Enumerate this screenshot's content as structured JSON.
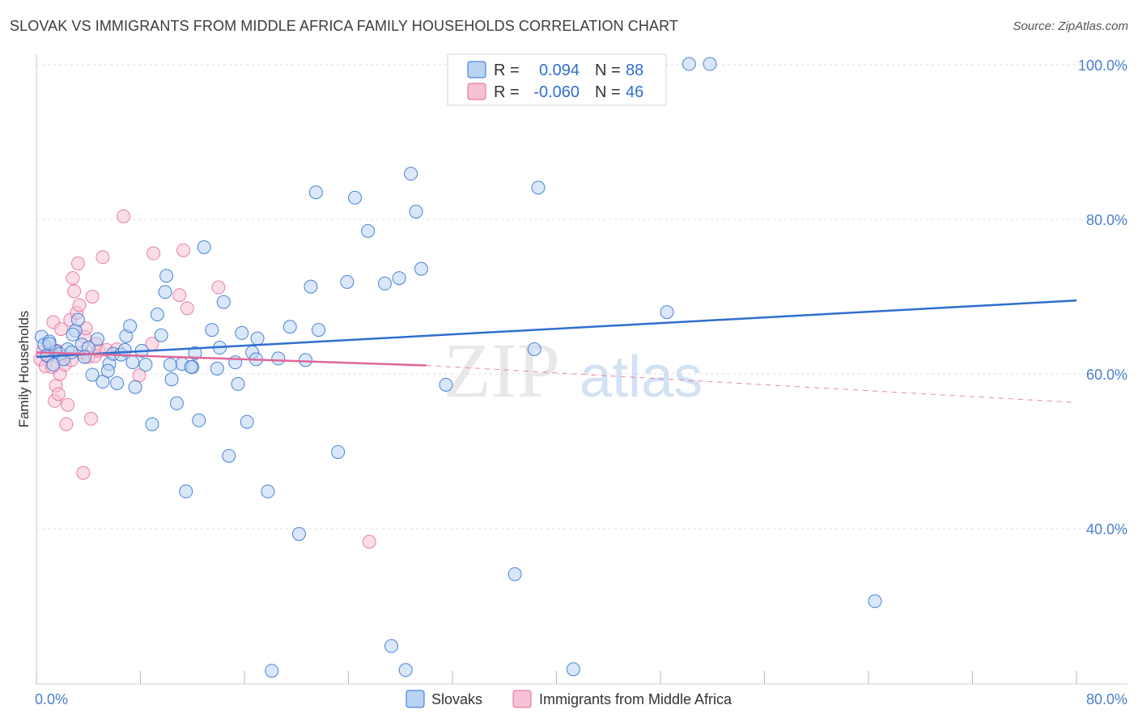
{
  "title": "SLOVAK VS IMMIGRANTS FROM MIDDLE AFRICA FAMILY HOUSEHOLDS CORRELATION CHART",
  "source": "Source: ZipAtlas.com",
  "watermark": {
    "zip": "ZIP",
    "atlas": "atlas"
  },
  "colors": {
    "blue": "#2f6fcf",
    "blue_fill": "#b9d3f3",
    "pink": "#e0679a",
    "pink_fill": "#f6c1d4",
    "tick": "#4a7fcf"
  },
  "legend": {
    "rows": [
      {
        "r_label": "R =",
        "r_value": "0.094",
        "n_label": "N =",
        "n_value": "88"
      },
      {
        "r_label": "R =",
        "r_value": "-0.060",
        "n_label": "N =",
        "n_value": "46"
      }
    ]
  },
  "chart_data": {
    "type": "scatter",
    "title": "SLOVAK VS IMMIGRANTS FROM MIDDLE AFRICA FAMILY HOUSEHOLDS CORRELATION CHART",
    "xlabel": "",
    "ylabel": "Family Households",
    "xlim": [
      0,
      80
    ],
    "ylim": [
      20,
      102
    ],
    "x_tick_labels": [
      {
        "value": 0,
        "label": "0.0%"
      },
      {
        "value": 80,
        "label": "80.0%"
      }
    ],
    "y_tick_labels": [
      {
        "value": 100,
        "label": "100.0%"
      },
      {
        "value": 80,
        "label": "80.0%"
      },
      {
        "value": 60,
        "label": "60.0%"
      },
      {
        "value": 40,
        "label": "40.0%"
      }
    ],
    "series": [
      {
        "name": "Slovaks",
        "color": "#2f6fcf",
        "trend": {
          "x": [
            0,
            80
          ],
          "y": [
            62.2,
            69.5
          ],
          "style": "solid"
        },
        "points": [
          [
            0.4,
            64.8
          ],
          [
            0.6,
            63.8
          ],
          [
            0.8,
            62.4
          ],
          [
            1.0,
            64.2
          ],
          [
            1.3,
            61.2
          ],
          [
            1.5,
            62.9
          ],
          [
            1.8,
            62.6
          ],
          [
            2.1,
            61.9
          ],
          [
            2.4,
            63.2
          ],
          [
            2.7,
            62.8
          ],
          [
            3.0,
            65.6
          ],
          [
            3.2,
            67.0
          ],
          [
            3.5,
            63.8
          ],
          [
            4.0,
            63.4
          ],
          [
            4.3,
            59.9
          ],
          [
            4.7,
            64.5
          ],
          [
            5.1,
            59.0
          ],
          [
            5.6,
            61.3
          ],
          [
            5.9,
            62.6
          ],
          [
            6.2,
            58.8
          ],
          [
            6.5,
            62.5
          ],
          [
            6.9,
            64.9
          ],
          [
            7.2,
            66.2
          ],
          [
            7.6,
            58.3
          ],
          [
            8.1,
            63.0
          ],
          [
            8.4,
            61.2
          ],
          [
            8.9,
            53.5
          ],
          [
            9.3,
            67.7
          ],
          [
            9.6,
            65.0
          ],
          [
            10.0,
            72.7
          ],
          [
            10.4,
            59.3
          ],
          [
            10.8,
            56.2
          ],
          [
            11.2,
            61.3
          ],
          [
            11.5,
            44.8
          ],
          [
            12.0,
            60.9
          ],
          [
            12.5,
            54.0
          ],
          [
            12.9,
            76.4
          ],
          [
            13.5,
            65.7
          ],
          [
            14.1,
            63.4
          ],
          [
            14.8,
            49.4
          ],
          [
            15.3,
            61.5
          ],
          [
            15.8,
            65.3
          ],
          [
            16.2,
            53.8
          ],
          [
            16.6,
            62.8
          ],
          [
            17.0,
            64.6
          ],
          [
            17.8,
            44.8
          ],
          [
            18.1,
            21.6
          ],
          [
            18.6,
            62.0
          ],
          [
            19.5,
            66.1
          ],
          [
            20.2,
            39.3
          ],
          [
            20.7,
            61.8
          ],
          [
            21.1,
            71.3
          ],
          [
            21.5,
            83.5
          ],
          [
            21.7,
            65.7
          ],
          [
            23.2,
            49.9
          ],
          [
            23.9,
            71.9
          ],
          [
            24.5,
            82.8
          ],
          [
            25.5,
            78.5
          ],
          [
            26.8,
            71.7
          ],
          [
            27.3,
            24.8
          ],
          [
            27.9,
            72.4
          ],
          [
            28.4,
            21.7
          ],
          [
            28.8,
            85.9
          ],
          [
            29.2,
            81.0
          ],
          [
            29.6,
            73.6
          ],
          [
            31.5,
            58.6
          ],
          [
            36.8,
            34.1
          ],
          [
            38.3,
            63.2
          ],
          [
            38.6,
            84.1
          ],
          [
            41.3,
            21.8
          ],
          [
            48.5,
            68.0
          ],
          [
            50.2,
            100.1
          ],
          [
            51.8,
            100.1
          ],
          [
            64.5,
            30.6
          ],
          [
            9.9,
            70.6
          ],
          [
            5.5,
            60.4
          ],
          [
            14.4,
            69.3
          ],
          [
            16.9,
            61.9
          ],
          [
            3.7,
            62.2
          ],
          [
            12.2,
            62.7
          ],
          [
            2.8,
            65.1
          ],
          [
            7.4,
            61.5
          ],
          [
            15.5,
            58.7
          ],
          [
            11.9,
            60.9
          ],
          [
            1.0,
            63.9
          ],
          [
            13.9,
            60.7
          ],
          [
            10.3,
            61.2
          ],
          [
            6.8,
            63.1
          ]
        ]
      },
      {
        "name": "Immigrants from Middle Africa",
        "color": "#e0679a",
        "trend": {
          "x": [
            0,
            30
          ],
          "y": [
            62.8,
            61.1
          ],
          "style": "solid",
          "dashed_extension": {
            "x": [
              30,
              80
            ],
            "y": [
              61.1,
              56.3
            ]
          }
        },
        "points": [
          [
            0.3,
            61.9
          ],
          [
            0.5,
            62.9
          ],
          [
            0.7,
            61.0
          ],
          [
            0.9,
            62.4
          ],
          [
            1.1,
            63.3
          ],
          [
            1.3,
            66.7
          ],
          [
            1.4,
            56.5
          ],
          [
            1.5,
            58.5
          ],
          [
            1.6,
            63.0
          ],
          [
            1.7,
            57.4
          ],
          [
            1.8,
            60.0
          ],
          [
            1.9,
            65.8
          ],
          [
            2.0,
            62.4
          ],
          [
            2.2,
            61.2
          ],
          [
            2.3,
            53.5
          ],
          [
            2.4,
            56.0
          ],
          [
            2.6,
            67.0
          ],
          [
            2.7,
            61.8
          ],
          [
            2.8,
            72.4
          ],
          [
            2.9,
            70.7
          ],
          [
            3.1,
            67.9
          ],
          [
            3.2,
            74.3
          ],
          [
            3.3,
            68.9
          ],
          [
            3.5,
            62.8
          ],
          [
            3.6,
            47.2
          ],
          [
            3.7,
            64.8
          ],
          [
            3.8,
            65.9
          ],
          [
            4.0,
            62.2
          ],
          [
            4.2,
            54.2
          ],
          [
            4.3,
            70.0
          ],
          [
            4.5,
            62.3
          ],
          [
            4.6,
            63.9
          ],
          [
            4.8,
            63.0
          ],
          [
            5.1,
            75.1
          ],
          [
            5.4,
            63.1
          ],
          [
            6.2,
            63.2
          ],
          [
            6.7,
            80.4
          ],
          [
            7.9,
            59.8
          ],
          [
            8.9,
            63.9
          ],
          [
            9.0,
            75.6
          ],
          [
            11.0,
            70.2
          ],
          [
            11.3,
            76.0
          ],
          [
            11.6,
            68.5
          ],
          [
            14.0,
            71.2
          ],
          [
            25.6,
            38.3
          ],
          [
            1.2,
            60.9
          ]
        ]
      }
    ]
  },
  "bottom_legend": [
    {
      "label": "Slovaks"
    },
    {
      "label": "Immigrants from Middle Africa"
    }
  ]
}
